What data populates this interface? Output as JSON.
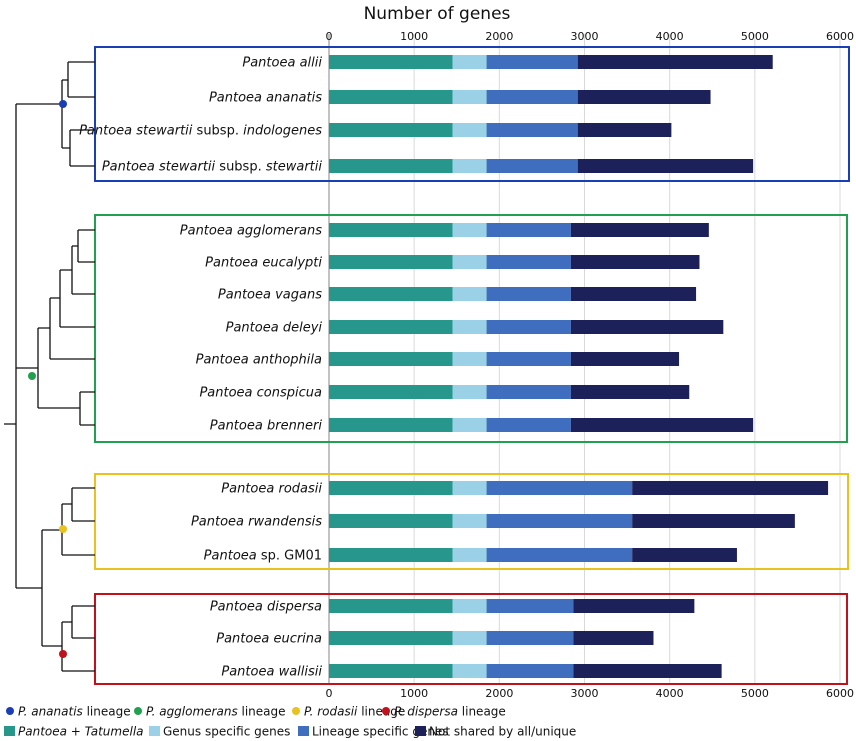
{
  "chart_data": {
    "type": "bar",
    "stacked": true,
    "orientation": "horizontal",
    "title": "Number of genes",
    "xlim": [
      0,
      6000
    ],
    "ticks": [
      0,
      1000,
      2000,
      3000,
      4000,
      5000,
      6000
    ],
    "grid": true,
    "series": [
      {
        "name": "Pantoea + Tatumella",
        "color": "#26978a"
      },
      {
        "name": "Genus specific genes",
        "color": "#9ad1e6"
      },
      {
        "name": "Lineage specific genes",
        "color": "#3f6ebf"
      },
      {
        "name": "Not shared by all/unique",
        "color": "#1d2159"
      }
    ],
    "groups": [
      {
        "lineage": "P. ananatis lineage",
        "color": "#1a3fb5",
        "rows": [
          {
            "genus": "Pantoea",
            "species": "allii",
            "suffix": "",
            "values": [
              1450,
              400,
              1070,
              2290
            ]
          },
          {
            "genus": "Pantoea",
            "species": "ananatis",
            "suffix": "",
            "values": [
              1450,
              400,
              1070,
              1560
            ]
          },
          {
            "genus": "Pantoea",
            "species": "stewartii",
            "suffix": "subsp.",
            "species2": "indologenes",
            "values": [
              1450,
              400,
              1070,
              1100
            ]
          },
          {
            "genus": "Pantoea",
            "species": "stewartii",
            "suffix": "subsp.",
            "species2": "stewartii",
            "values": [
              1450,
              400,
              1070,
              2060
            ]
          }
        ]
      },
      {
        "lineage": "P. agglomerans lineage",
        "color": "#21a150",
        "rows": [
          {
            "genus": "Pantoea",
            "species": "agglomerans",
            "suffix": "",
            "values": [
              1450,
              400,
              990,
              1620
            ]
          },
          {
            "genus": "Pantoea",
            "species": "eucalypti",
            "suffix": "",
            "values": [
              1450,
              400,
              990,
              1510
            ]
          },
          {
            "genus": "Pantoea",
            "species": "vagans",
            "suffix": "",
            "values": [
              1450,
              400,
              990,
              1470
            ]
          },
          {
            "genus": "Pantoea",
            "species": "deleyi",
            "suffix": "",
            "values": [
              1450,
              400,
              990,
              1790
            ]
          },
          {
            "genus": "Pantoea",
            "species": "anthophila",
            "suffix": "",
            "values": [
              1450,
              400,
              990,
              1270
            ]
          },
          {
            "genus": "Pantoea",
            "species": "conspicua",
            "suffix": "",
            "values": [
              1450,
              400,
              990,
              1390
            ]
          },
          {
            "genus": "Pantoea",
            "species": "brenneri",
            "suffix": "",
            "values": [
              1450,
              400,
              990,
              2140
            ]
          }
        ]
      },
      {
        "lineage": "P. rodasii lineage",
        "color": "#e8c21e",
        "rows": [
          {
            "genus": "Pantoea",
            "species": "rodasii",
            "suffix": "",
            "values": [
              1450,
              400,
              1710,
              2300
            ]
          },
          {
            "genus": "Pantoea",
            "species": "rwandensis",
            "suffix": "",
            "values": [
              1450,
              400,
              1710,
              1910
            ]
          },
          {
            "genus": "Pantoea",
            "species": "",
            "suffix": "sp. GM01",
            "values": [
              1450,
              400,
              1710,
              1230
            ]
          }
        ]
      },
      {
        "lineage": "P. dispersa lineage",
        "color": "#c1121c",
        "rows": [
          {
            "genus": "Pantoea",
            "species": "dispersa",
            "suffix": "",
            "values": [
              1450,
              400,
              1020,
              1420
            ]
          },
          {
            "genus": "Pantoea",
            "species": "eucrina",
            "suffix": "",
            "values": [
              1450,
              400,
              1020,
              940
            ]
          },
          {
            "genus": "Pantoea",
            "species": "wallisii",
            "suffix": "",
            "values": [
              1450,
              400,
              1020,
              1740
            ]
          }
        ]
      }
    ],
    "lineage_legend": [
      {
        "italic": "P. ananatis",
        "text": " lineage",
        "color": "#1a3fb5"
      },
      {
        "italic": "P. agglomerans",
        "text": " lineage",
        "color": "#21a150"
      },
      {
        "italic": "P. rodasii",
        "text": " lineage",
        "color": "#e8c21e"
      },
      {
        "italic": "P. dispersa",
        "text": " lineage",
        "color": "#c1121c"
      }
    ],
    "bar_legend": [
      {
        "italic_a": "Pantoea",
        "plain": " + ",
        "italic_b": "Tatumella"
      },
      {
        "plain": "Genus specific genes"
      },
      {
        "plain": "Lineage specific genes"
      },
      {
        "plain": "Not shared by all/unique"
      }
    ]
  }
}
